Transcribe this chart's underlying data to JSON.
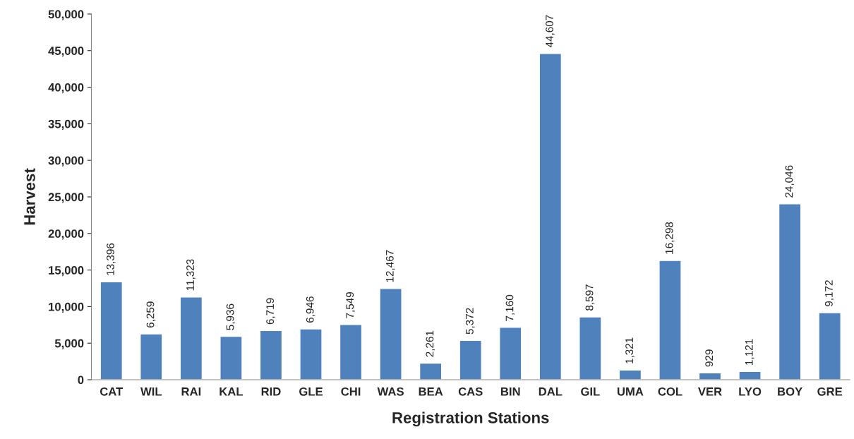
{
  "chart_data": {
    "type": "bar",
    "xlabel": "Registration Stations",
    "ylabel": "Harvest",
    "categories": [
      "CAT",
      "WIL",
      "RAI",
      "KAL",
      "RID",
      "GLE",
      "CHI",
      "WAS",
      "BEA",
      "CAS",
      "BIN",
      "DAL",
      "GIL",
      "UMA",
      "COL",
      "VER",
      "LYO",
      "BOY",
      "GRE"
    ],
    "values": [
      13396,
      6259,
      11323,
      5936,
      6719,
      6946,
      7549,
      12467,
      2261,
      5372,
      7160,
      44607,
      8597,
      1321,
      16298,
      929,
      1121,
      24046,
      9172
    ],
    "color": "#4f81bd",
    "ylim": [
      0,
      50000
    ],
    "yticks": [
      0,
      {
        "value": 5000,
        "label": "5,000"
      },
      {
        "value": 10000,
        "label": "10,000"
      },
      {
        "value": 15000,
        "label": "15,000"
      },
      {
        "value": 20000,
        "label": "20,000"
      },
      {
        "value": 25000,
        "label": "25,000"
      },
      {
        "value": 30000,
        "label": "30,000"
      },
      {
        "value": 35000,
        "label": "35,000"
      },
      {
        "value": 40000,
        "label": "40,000"
      },
      {
        "value": 45000,
        "label": "45,000"
      },
      {
        "value": 50000,
        "label": "50,000"
      }
    ],
    "value_labels": [
      "13,396",
      "6,259",
      "11,323",
      "5,936",
      "6,719",
      "6,946",
      "7,549",
      "12,467",
      "2,261",
      "5,372",
      "7,160",
      "44,607",
      "8,597",
      "1,321",
      "16,298",
      "929",
      "1,121",
      "24,046",
      "9,172"
    ],
    "grid": false,
    "legend": false
  }
}
